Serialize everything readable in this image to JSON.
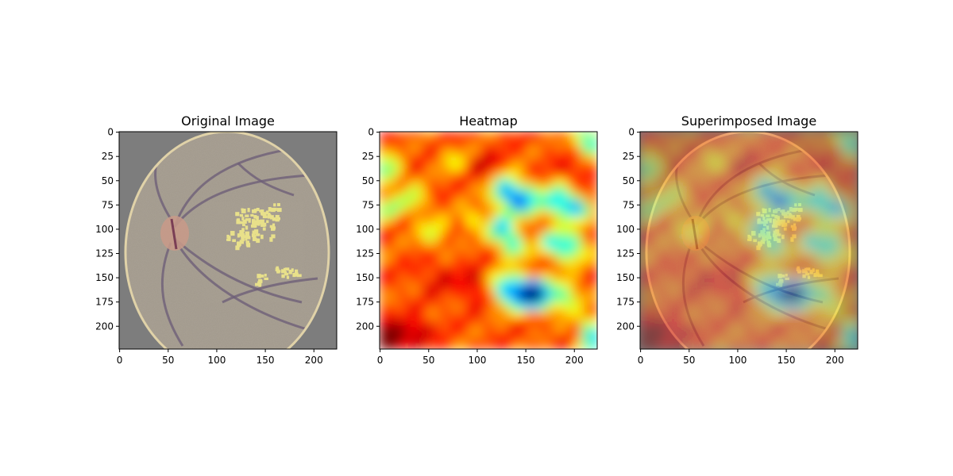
{
  "panels": [
    {
      "title": "Original Image",
      "kind": "original",
      "xticks": [
        "0",
        "50",
        "100",
        "150",
        "200"
      ],
      "yticks": [
        "0",
        "25",
        "50",
        "75",
        "100",
        "125",
        "150",
        "175",
        "200"
      ]
    },
    {
      "title": "Heatmap",
      "kind": "heatmap",
      "xticks": [
        "0",
        "50",
        "100",
        "150",
        "200"
      ],
      "yticks": [
        "0",
        "25",
        "50",
        "75",
        "100",
        "125",
        "150",
        "175",
        "200"
      ]
    },
    {
      "title": "Superimposed Image",
      "kind": "superimposed",
      "xticks": [
        "0",
        "50",
        "100",
        "150",
        "200"
      ],
      "yticks": [
        "0",
        "25",
        "50",
        "75",
        "100",
        "125",
        "150",
        "175",
        "200"
      ]
    }
  ],
  "colors": {
    "background_gray": "#7d7d7d",
    "retina_tint": "#a39a8c",
    "vessel": "#6e5f78",
    "exudate": "#e8e08a",
    "optic_disc": "#c99a88",
    "heat_low": "#0000ff",
    "heat_mid": "#00ffff",
    "heat_high": "#ff0000"
  }
}
